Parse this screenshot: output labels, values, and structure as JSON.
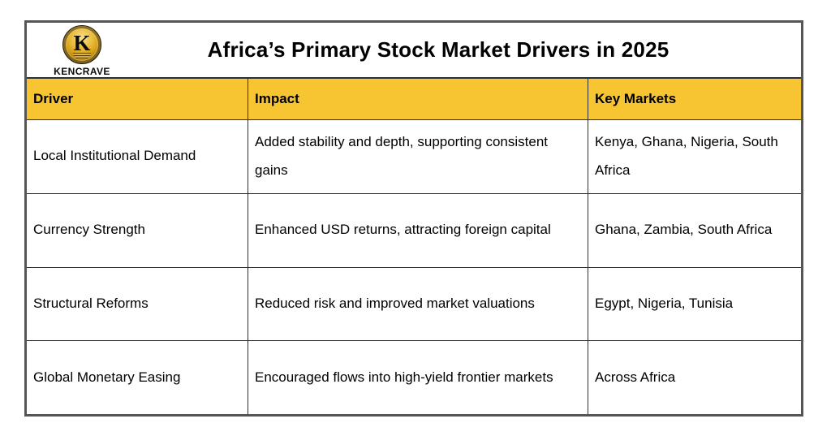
{
  "colors": {
    "header_bg": "#F7C531",
    "border_outer": "#555555",
    "border_grid": "#2f2f2f",
    "logo_gold": "#D4A017"
  },
  "logo": {
    "letter": "K",
    "name": "KENCRAVE"
  },
  "title": "Africa’s Primary Stock Market Drivers in 2025",
  "chart_data": {
    "type": "table",
    "title": "Africa’s Primary Stock Market Drivers in 2025",
    "columns": [
      "Driver",
      "Impact",
      "Key Markets"
    ],
    "rows": [
      [
        "Local Institutional Demand",
        "Added stability and depth, supporting consistent gains",
        "Kenya, Ghana, Nigeria, South Africa"
      ],
      [
        "Currency Strength",
        "Enhanced USD returns, attracting foreign capital",
        "Ghana, Zambia, South Africa"
      ],
      [
        "Structural Reforms",
        "Reduced risk and improved market valuations",
        "Egypt, Nigeria, Tunisia"
      ],
      [
        "Global Monetary Easing",
        "Encouraged flows into high-yield frontier markets",
        "Across Africa"
      ]
    ],
    "layout": {
      "header_row_color": "#F7C531",
      "grid": true,
      "column_alignment": "left"
    }
  }
}
